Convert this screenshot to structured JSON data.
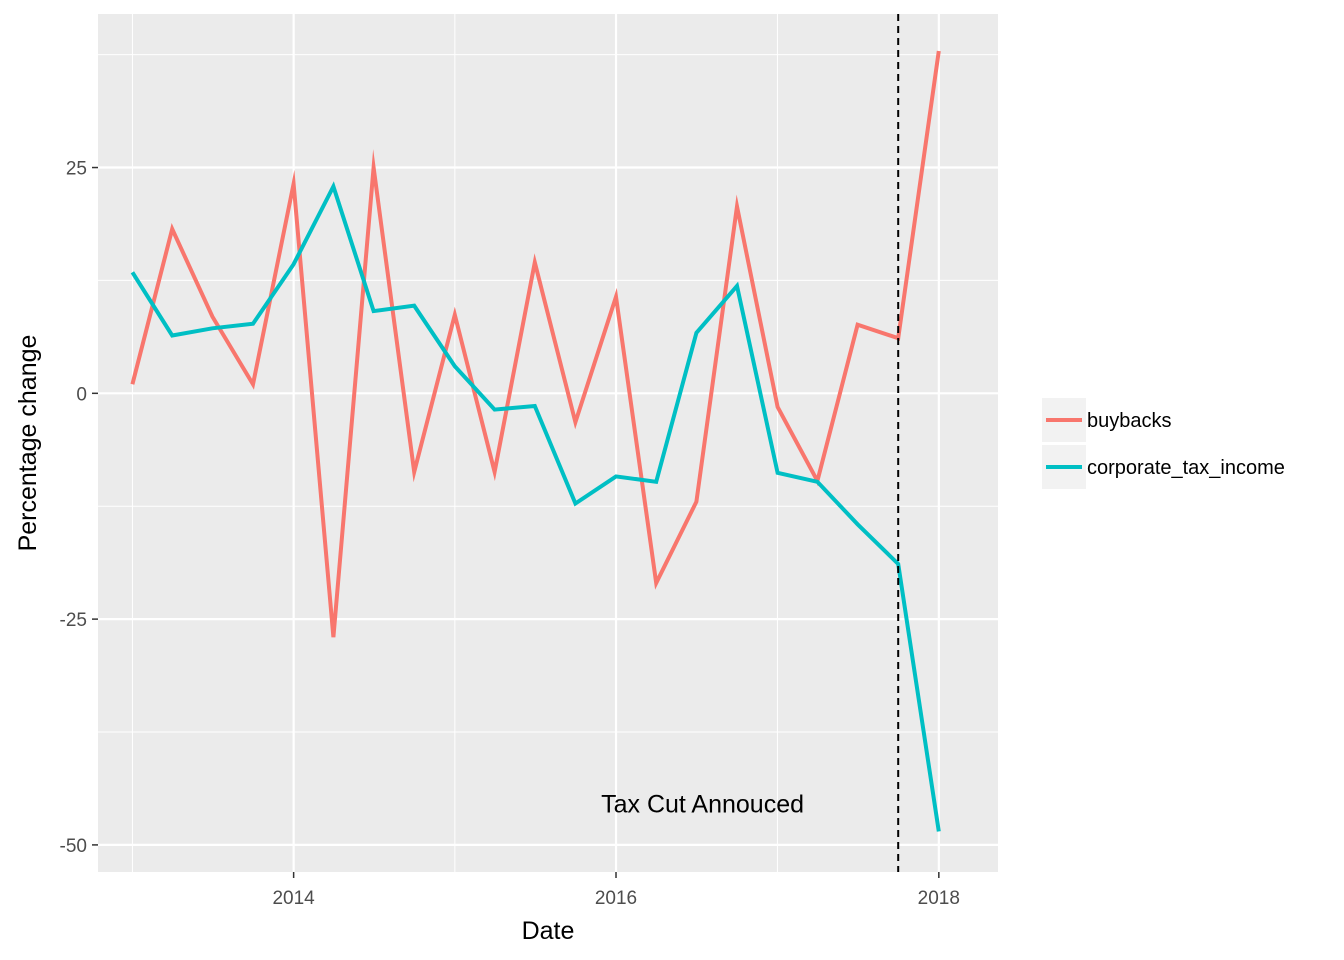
{
  "chart_data": {
    "type": "line",
    "title": "",
    "xlabel": "Date",
    "ylabel": "Percentage change",
    "x_axis_type": "date",
    "xlim": [
      "2012-10-15",
      "2018-05-15"
    ],
    "ylim": [
      -53,
      42
    ],
    "x_ticks": [
      {
        "date": "2014-01-01",
        "label": "2014"
      },
      {
        "date": "2016-01-01",
        "label": "2016"
      },
      {
        "date": "2018-01-01",
        "label": "2018"
      }
    ],
    "y_ticks": [
      {
        "value": 25,
        "label": "25"
      },
      {
        "value": 0,
        "label": "0"
      },
      {
        "value": -25,
        "label": "-25"
      },
      {
        "value": -50,
        "label": "-50"
      }
    ],
    "grid": true,
    "background_color": "#ebebeb",
    "legend": {
      "position": "right",
      "entries": [
        "buybacks",
        "corporate_tax_income"
      ]
    },
    "series": [
      {
        "name": "buybacks",
        "color": "#f8766d",
        "x": [
          "2013-01-01",
          "2013-04-01",
          "2013-07-01",
          "2013-10-01",
          "2014-01-01",
          "2014-04-01",
          "2014-07-01",
          "2014-10-01",
          "2015-01-01",
          "2015-04-01",
          "2015-07-01",
          "2015-10-01",
          "2016-01-01",
          "2016-04-01",
          "2016-07-01",
          "2016-10-01",
          "2017-01-01",
          "2017-04-01",
          "2017-07-01",
          "2017-10-01",
          "2018-01-01"
        ],
        "values": [
          1,
          18.2,
          8.5,
          1,
          23.2,
          -27,
          25,
          -8.7,
          8.7,
          -8.7,
          14.5,
          -3.2,
          10.7,
          -21,
          -12,
          20.7,
          -1.5,
          -9.7,
          7.6,
          6.1,
          37.9
        ]
      },
      {
        "name": "corporate_tax_income",
        "color": "#00bfc4",
        "x": [
          "2013-01-01",
          "2013-04-01",
          "2013-07-01",
          "2013-10-01",
          "2014-01-01",
          "2014-04-01",
          "2014-07-01",
          "2014-10-01",
          "2015-01-01",
          "2015-04-01",
          "2015-07-01",
          "2015-10-01",
          "2016-01-01",
          "2016-04-01",
          "2016-07-01",
          "2016-10-01",
          "2017-01-01",
          "2017-04-01",
          "2017-07-01",
          "2017-10-01",
          "2018-01-01"
        ],
        "values": [
          13.4,
          6.4,
          7.2,
          7.7,
          14.3,
          22.9,
          9.1,
          9.7,
          3,
          -1.8,
          -1.4,
          -12.2,
          -9.2,
          -9.8,
          6.7,
          11.9,
          -8.8,
          -9.8,
          -14.5,
          -18.9,
          -48.5
        ]
      }
    ],
    "reference_line": {
      "date": "2017-10-01",
      "style": "dashed",
      "color": "#000000"
    },
    "annotation": {
      "text": "Tax Cut Annouced",
      "date": "2016-07-15",
      "value": -45.4
    }
  }
}
